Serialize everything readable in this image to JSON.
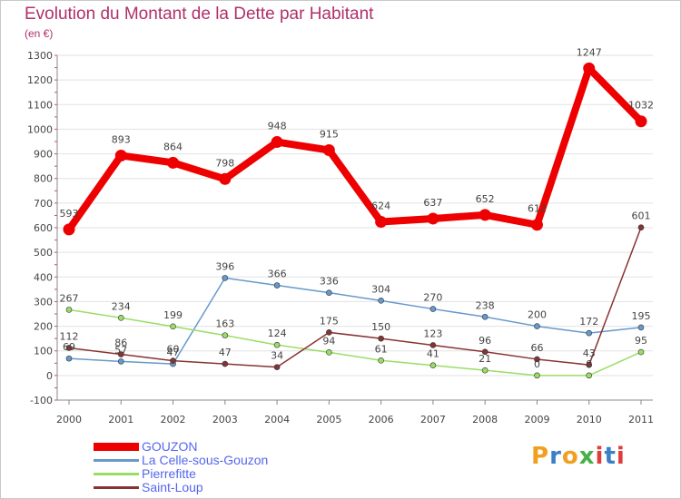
{
  "title": "Evolution du Montant de la Dette par Habitant",
  "unit": "(en €)",
  "logo": {
    "text": "Proxiti",
    "letters": [
      {
        "ch": "P",
        "color": "#f0a020"
      },
      {
        "ch": "r",
        "color": "#3a7fc8"
      },
      {
        "ch": "o",
        "color": "#f0a020"
      },
      {
        "ch": "x",
        "color": "#48b048"
      },
      {
        "ch": "i",
        "color": "#e03c3c"
      },
      {
        "ch": "t",
        "color": "#3a7fc8"
      },
      {
        "ch": "i",
        "color": "#e03c3c"
      }
    ]
  },
  "chart_data": {
    "type": "line",
    "title": "Evolution du Montant de la Dette par Habitant",
    "ylabel": "(en €)",
    "xlabel": "",
    "x": [
      "2000",
      "2001",
      "2002",
      "2003",
      "2004",
      "2005",
      "2006",
      "2007",
      "2008",
      "2009",
      "2010",
      "2011"
    ],
    "ylim": [
      -100,
      1300
    ],
    "yticks": [
      -100,
      0,
      100,
      200,
      300,
      400,
      500,
      600,
      700,
      800,
      900,
      1000,
      1100,
      1200,
      1300
    ],
    "grid": "horizontal",
    "legend": "bottom-left",
    "series": [
      {
        "name": "GOUZON",
        "color": "#ee0000",
        "values": [
          593,
          893,
          864,
          798,
          948,
          915,
          624,
          637,
          652,
          612,
          1247,
          1032
        ],
        "labels": [
          "593",
          "893",
          "864",
          "798",
          "948",
          "915",
          "624",
          "637",
          "652",
          "612",
          "1247",
          "1032"
        ]
      },
      {
        "name": "La Celle-sous-Gouzon",
        "color": "#6699cc",
        "values": [
          69,
          57,
          47,
          396,
          366,
          336,
          304,
          270,
          238,
          200,
          172,
          195
        ],
        "labels": [
          "69",
          "57",
          "47",
          "396",
          "366",
          "336",
          "304",
          "270",
          "238",
          "200",
          "172",
          "195"
        ]
      },
      {
        "name": "Pierrefitte",
        "color": "#99dd66",
        "values": [
          267,
          234,
          199,
          163,
          124,
          94,
          61,
          41,
          21,
          0,
          0,
          95
        ],
        "labels": [
          "267",
          "234",
          "199",
          "163",
          "124",
          "94",
          "61",
          "41",
          "21",
          "0",
          "0",
          "95"
        ]
      },
      {
        "name": "Saint-Loup",
        "color": "#883333",
        "values": [
          112,
          86,
          60,
          47,
          34,
          175,
          150,
          123,
          96,
          66,
          43,
          601
        ],
        "labels": [
          "112",
          "86",
          "60",
          "47",
          "34",
          "175",
          "150",
          "123",
          "96",
          "66",
          "43",
          "601"
        ]
      }
    ]
  }
}
